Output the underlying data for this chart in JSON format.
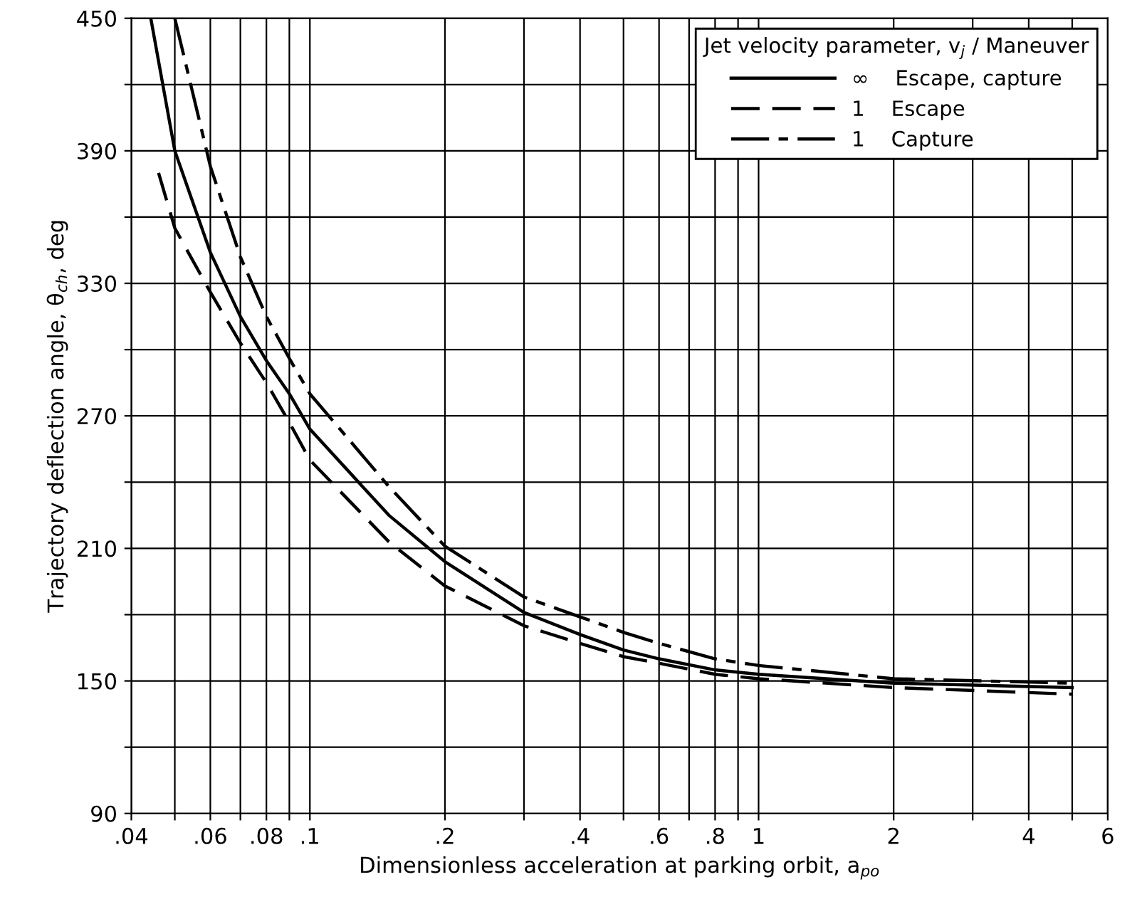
{
  "chart_data": {
    "type": "line",
    "xlabel": "Dimensionless acceleration at parking orbit, a$_{po}$",
    "ylabel": "Trajectory deflection angle, θ$_{ch}$, deg",
    "legend_title": "Jet velocity parameter, v$_{j}$ / Maneuver",
    "log": "x",
    "grid": true,
    "legend": "top right",
    "marker": "none",
    "xlim": [
      0.04,
      6
    ],
    "ylim": [
      90,
      450
    ],
    "xticks": [
      {
        "value": 0.04,
        "label": ".04"
      },
      {
        "value": 0.05,
        "label": null
      },
      {
        "value": 0.06,
        "label": ".06"
      },
      {
        "value": 0.07,
        "label": null
      },
      {
        "value": 0.08,
        "label": ".08"
      },
      {
        "value": 0.09,
        "label": null
      },
      {
        "value": 0.1,
        "label": ".1"
      },
      {
        "value": 0.2,
        "label": ".2"
      },
      {
        "value": 0.3,
        "label": null
      },
      {
        "value": 0.4,
        "label": ".4"
      },
      {
        "value": 0.5,
        "label": null
      },
      {
        "value": 0.6,
        "label": ".6"
      },
      {
        "value": 0.7,
        "label": null
      },
      {
        "value": 0.8,
        "label": ".8"
      },
      {
        "value": 0.9,
        "label": null
      },
      1,
      2,
      {
        "value": 3,
        "label": null
      },
      4,
      {
        "value": 5,
        "label": null
      },
      6
    ],
    "yticks": [
      90,
      {
        "value": 120,
        "label": null
      },
      150,
      {
        "value": 180,
        "label": null
      },
      210,
      {
        "value": 240,
        "label": null
      },
      270,
      {
        "value": 300,
        "label": null
      },
      330,
      {
        "value": 360,
        "label": null
      },
      390,
      {
        "value": 420,
        "label": null
      },
      450
    ],
    "series": [
      {
        "name": "∞    Escape, capture",
        "color": "#000000",
        "line_style": "solid",
        "x": [
          0.0442,
          0.05,
          0.06,
          0.07,
          0.08,
          0.09,
          0.1,
          0.15,
          0.2,
          0.3,
          0.4,
          0.5,
          0.6,
          0.8,
          1,
          2,
          5
        ],
        "values": [
          450,
          390,
          344,
          315,
          295,
          280,
          264,
          225,
          204,
          181,
          171,
          164,
          160,
          155,
          153,
          149,
          147
        ]
      },
      {
        "name": "1    Escape",
        "color": "#000000",
        "line_style": "dashed",
        "x": [
          0.046,
          0.05,
          0.06,
          0.07,
          0.08,
          0.09,
          0.1,
          0.15,
          0.2,
          0.3,
          0.4,
          0.5,
          0.6,
          0.8,
          1,
          2,
          5
        ],
        "values": [
          380,
          355,
          326,
          303,
          285,
          267,
          250,
          213,
          193,
          175,
          167,
          161,
          158,
          153,
          151,
          147,
          144
        ]
      },
      {
        "name": "1    Capture",
        "color": "#000000",
        "line_style": "dashdot",
        "x": [
          0.05,
          0.06,
          0.07,
          0.08,
          0.09,
          0.1,
          0.15,
          0.2,
          0.3,
          0.4,
          0.5,
          0.6,
          0.8,
          1,
          2,
          5
        ],
        "values": [
          450,
          383,
          342,
          315,
          296,
          280,
          238,
          211,
          188,
          179,
          172,
          167,
          160,
          157,
          151,
          149
        ]
      }
    ]
  }
}
